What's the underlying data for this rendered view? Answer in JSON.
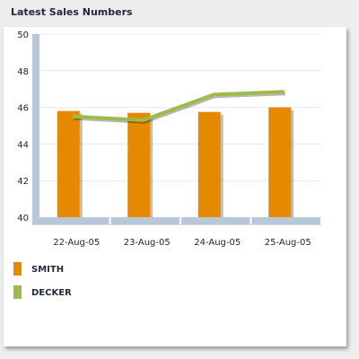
{
  "title": "Latest Sales Numbers",
  "chart_data": {
    "type": "bar",
    "categories": [
      "22-Aug-05",
      "23-Aug-05",
      "24-Aug-05",
      "25-Aug-05"
    ],
    "series": [
      {
        "name": "SMITH",
        "type": "bar",
        "color": "#e58a00",
        "values": [
          45.8,
          45.7,
          45.75,
          46.0
        ]
      },
      {
        "name": "DECKER",
        "type": "line",
        "color": "#9dbb4a",
        "values": [
          45.5,
          45.3,
          46.7,
          46.85
        ]
      }
    ],
    "ylim": [
      40,
      50
    ],
    "yticks": [
      40,
      42,
      44,
      46,
      48,
      50
    ],
    "grid": true,
    "legend": "bottom-left"
  }
}
